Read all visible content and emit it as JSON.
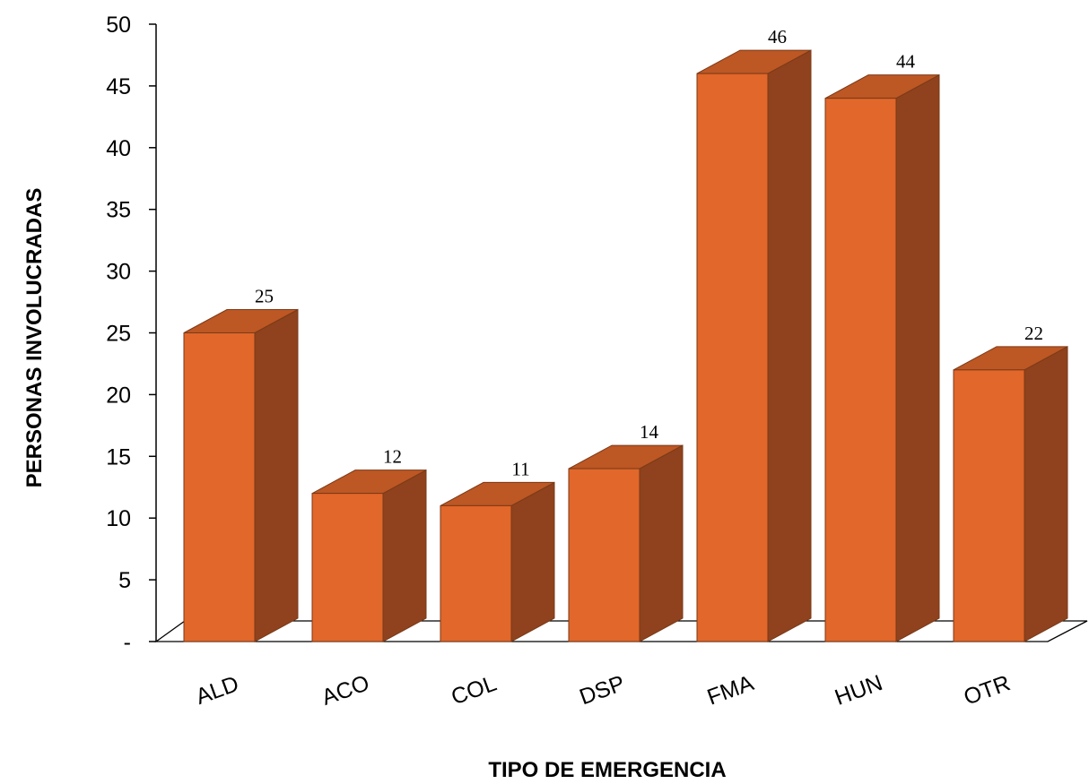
{
  "chart_data": {
    "type": "bar",
    "title": "",
    "xlabel": "TIPO DE EMERGENCIA",
    "ylabel": "PERSONAS INVOLUCRADAS",
    "categories": [
      "ALD",
      "ACO",
      "COL",
      "DSP",
      "FMA",
      "HUN",
      "OTR"
    ],
    "values": [
      25,
      12,
      11,
      14,
      46,
      44,
      22
    ],
    "data_labels": [
      "25",
      "12",
      "11",
      "14",
      "46",
      "44",
      "22"
    ],
    "ylim": [
      0,
      50
    ],
    "yticks": [
      0,
      5,
      10,
      15,
      20,
      25,
      30,
      35,
      40,
      45,
      50
    ],
    "ytick_labels": [
      "-",
      "5",
      "10",
      "15",
      "20",
      "25",
      "30",
      "35",
      "40",
      "45",
      "50"
    ],
    "style": "3d-column",
    "grid": false,
    "legend": "none",
    "colors": {
      "front": "#E2672A",
      "side": "#8F421D",
      "top": "#BD5724",
      "edge": "#7A3A18",
      "axis": "#000000"
    }
  }
}
